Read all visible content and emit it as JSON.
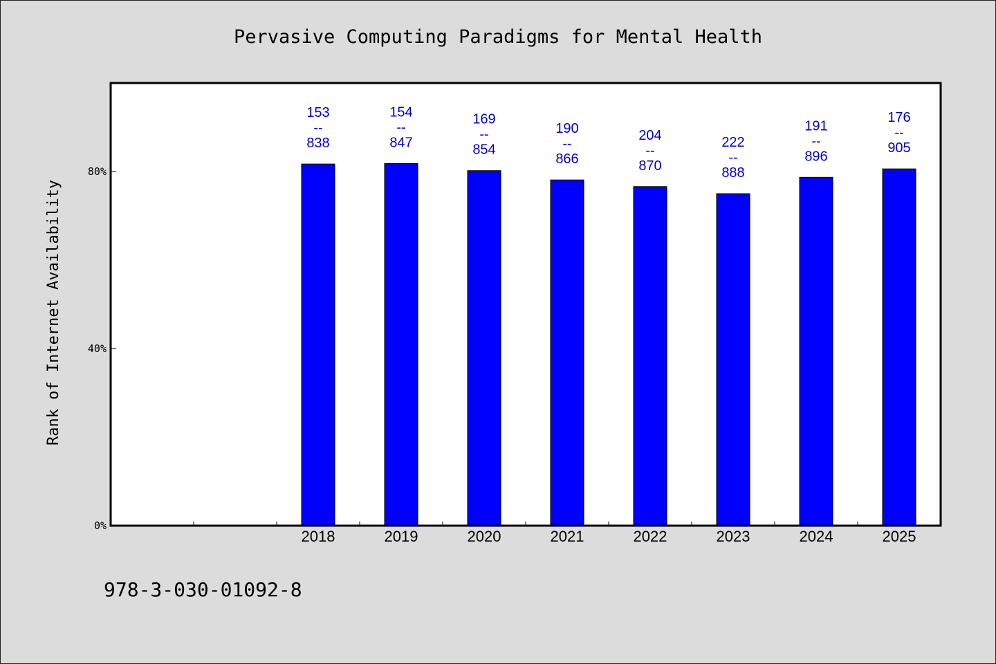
{
  "chart_data": {
    "type": "bar",
    "title": "Pervasive Computing Paradigms for Mental Health",
    "ylabel": "Rank of Internet Availability",
    "xlabel": "",
    "categories": [
      "",
      "",
      "2018",
      "2019",
      "2020",
      "2021",
      "2022",
      "2023",
      "2024",
      "2025"
    ],
    "values": [
      null,
      null,
      81.7,
      81.8,
      80.2,
      78.1,
      76.6,
      75.0,
      78.7,
      80.6
    ],
    "data_labels": [
      null,
      null,
      {
        "top": "153",
        "sep": "--",
        "bottom": "838"
      },
      {
        "top": "154",
        "sep": "--",
        "bottom": "847"
      },
      {
        "top": "169",
        "sep": "--",
        "bottom": "854"
      },
      {
        "top": "190",
        "sep": "--",
        "bottom": "866"
      },
      {
        "top": "204",
        "sep": "--",
        "bottom": "870"
      },
      {
        "top": "222",
        "sep": "--",
        "bottom": "888"
      },
      {
        "top": "191",
        "sep": "--",
        "bottom": "896"
      },
      {
        "top": "176",
        "sep": "--",
        "bottom": "905"
      }
    ],
    "ylim": [
      0,
      100
    ],
    "yticks": [
      0,
      40,
      80
    ],
    "ytick_labels": [
      "0%",
      "40%",
      "80%"
    ],
    "bar_color": "#0000ff",
    "label_color": "#0000cc",
    "grid": false
  },
  "footer": {
    "isbn": "978-3-030-01092-8"
  },
  "colors": {
    "background": "#dcdcdc",
    "plot_background": "#ffffff",
    "bar": "#0000ff"
  }
}
